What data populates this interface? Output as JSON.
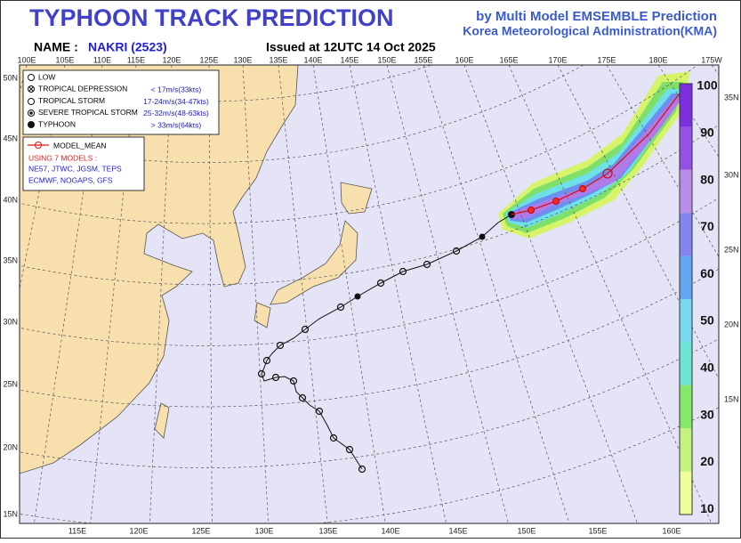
{
  "header": {
    "title": "TYPHOON  TRACK  PREDICTION",
    "subtitle_1": "by Multi Model EMSEMBLE Prediction",
    "subtitle_2": "Korea Meteorological Administration(KMA)",
    "name_label": "NAME :",
    "name": "NAKRI (2523)",
    "issued": "Issued at  12UTC 14 Oct 2025"
  },
  "map": {
    "top_lon_labels": [
      "100E",
      "105E",
      "110E",
      "115E",
      "120E",
      "125E",
      "130E",
      "135E",
      "140E",
      "145E",
      "150E",
      "155E",
      "160E",
      "165E",
      "170E",
      "175E",
      "180E",
      "175W"
    ],
    "bottom_lon_labels": [
      "115E",
      "120E",
      "125E",
      "130E",
      "135E",
      "140E",
      "145E",
      "150E",
      "155E",
      "160E"
    ],
    "left_lat_labels": [
      "50N",
      "45N",
      "40N",
      "35N",
      "30N",
      "25N",
      "20N",
      "15N"
    ],
    "right_lat_labels": [
      "35N",
      "30N",
      "25N",
      "20N",
      "15N"
    ]
  },
  "legend": {
    "intensity": [
      {
        "label": "LOW"
      },
      {
        "label": "TROPICAL DEPRESSION",
        "criterion": "< 17m/s(33kts)"
      },
      {
        "label": "TROPICAL STORM",
        "criterion": "17-24m/s(34-47kts)"
      },
      {
        "label": "SEVERE TROPICAL STORM",
        "criterion": "25-32m/s(48-63kts)"
      },
      {
        "label": "TYPHOON",
        "criterion": "> 33m/s(64kts)"
      }
    ],
    "model_mean": "MODEL_MEAN",
    "models_title": "USING 7 MODELS :",
    "models_line_1": "NE57, JTWC, JGSM, TEPS",
    "models_line_2": "ECMWF, NOGAPS, GFS"
  },
  "colorbar": {
    "labels": [
      100,
      90,
      80,
      70,
      60,
      50,
      40,
      30,
      20,
      10
    ]
  }
}
